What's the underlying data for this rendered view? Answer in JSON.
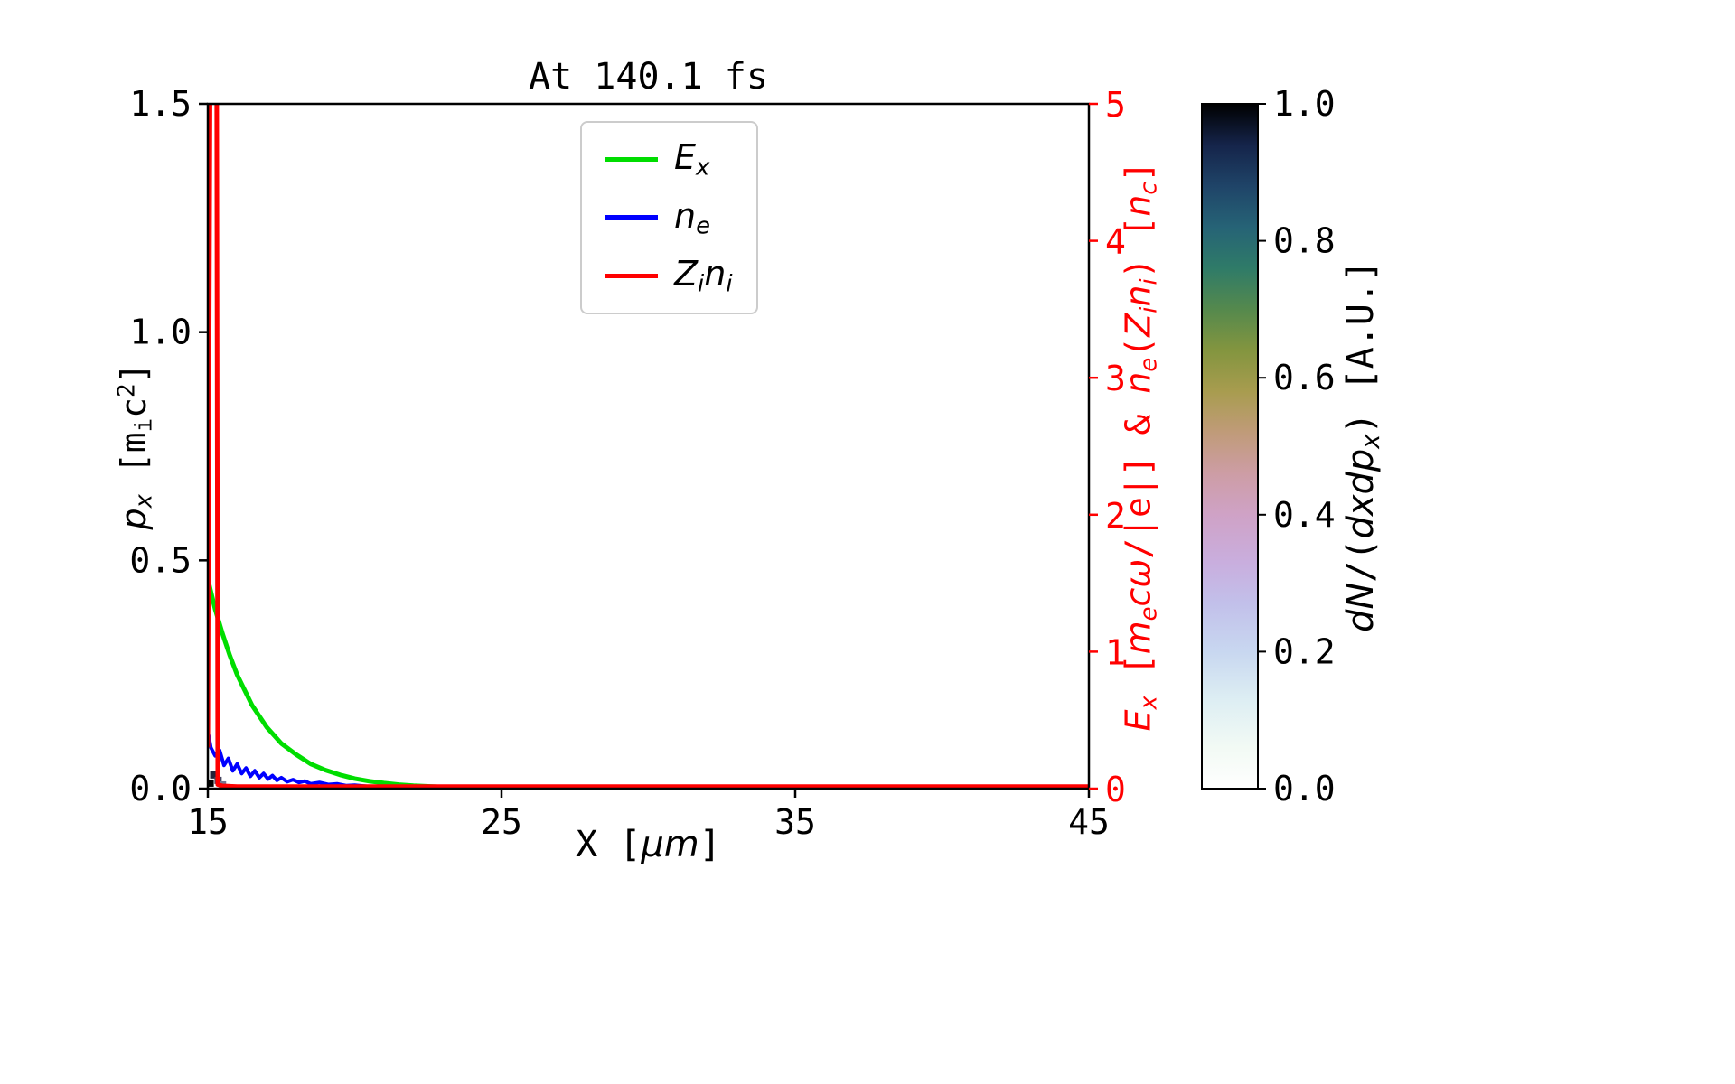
{
  "title": "At 140.1 fs",
  "labels": {
    "ylabel_left": {
      "p": "p",
      "x": "x",
      "m_open": " [m",
      "i": "i",
      "c": "c",
      "two": "2",
      "close": "]"
    },
    "xlabel": {
      "pre": "X [",
      "mu": "μm",
      "close": "]"
    },
    "ylabel_right": {
      "E": "E",
      "x": "x",
      "b1": " [",
      "m": "m",
      "e1": "e",
      "c": "c",
      "omega": "ω",
      "mid": "/|e|] & ",
      "n1": "n",
      "e2": "e",
      "p1": "(",
      "Z": "Z",
      "i1": "i",
      "n2": "n",
      "i2": "i",
      "p2": ") [",
      "n3": "n",
      "c2": "c",
      "b3": "]"
    },
    "colorbar": {
      "dN": "dN",
      "sl": "/(",
      "dxdp": "dxdp",
      "x": "x",
      "rest": ") [A.U.]"
    }
  },
  "legend": {
    "entries": [
      {
        "label_main": "E",
        "label_sub": "x"
      },
      {
        "label_main": "n",
        "label_sub": "e"
      },
      {
        "label_main": "Z",
        "label_sub": "i",
        "label_main2": "n",
        "label_sub2": "i"
      }
    ]
  },
  "chart_data": {
    "type": "line",
    "title": "At 140.1 fs",
    "xlabel": "X [μm]",
    "ylabel_left": "p_x [m_i c^2]",
    "ylabel_right": "E_x [m_e cω/|e|] & n_e(Z_i n_i) [n_c]",
    "xlim": [
      15,
      45
    ],
    "ylim_left": [
      0,
      1.5
    ],
    "ylim_right": [
      0,
      5
    ],
    "grid": false,
    "legend_position": "upper center",
    "x_ticks": [
      15,
      25,
      35,
      45
    ],
    "x_tick_labels": [
      "15",
      "25",
      "35",
      "45"
    ],
    "y_ticks_left": [
      0,
      0.5,
      1,
      1.5
    ],
    "y_tick_labels_left": [
      "0.0",
      "0.5",
      "1.0",
      "1.5"
    ],
    "y_ticks_right": [
      0,
      1,
      2,
      3,
      4,
      5
    ],
    "y_tick_labels_right": [
      "0",
      "1",
      "2",
      "3",
      "4",
      "5"
    ],
    "axis_color_left": "#000000",
    "axis_color_right": "#ff0000",
    "series": [
      {
        "name": "E_x",
        "axis": "right",
        "color": "#00dd00",
        "width": 5,
        "x": [
          15,
          15.25,
          15.5,
          15.75,
          16,
          16.5,
          17,
          17.5,
          18,
          18.5,
          19,
          19.5,
          20,
          20.5,
          21,
          21.5,
          22,
          23,
          24,
          25,
          30,
          45
        ],
        "y": [
          1.53,
          1.31,
          1.13,
          0.97,
          0.83,
          0.61,
          0.45,
          0.33,
          0.25,
          0.18,
          0.135,
          0.1,
          0.073,
          0.054,
          0.04,
          0.029,
          0.021,
          0.011,
          0.006,
          0.003,
          0,
          0
        ]
      },
      {
        "name": "n_e",
        "axis": "right",
        "color": "#0000ff",
        "width": 4,
        "x": [
          15,
          15.1,
          15.25,
          15.4,
          15.55,
          15.7,
          15.85,
          16,
          16.15,
          16.3,
          16.45,
          16.6,
          16.75,
          16.9,
          17.05,
          17.2,
          17.35,
          17.5,
          17.7,
          17.9,
          18.1,
          18.3,
          18.5,
          18.8,
          19.1,
          19.4,
          19.7,
          20,
          20.5,
          21,
          21.5,
          22,
          23,
          25,
          45
        ],
        "y": [
          0.42,
          0.3,
          0.24,
          0.28,
          0.17,
          0.22,
          0.13,
          0.18,
          0.11,
          0.15,
          0.09,
          0.13,
          0.08,
          0.11,
          0.07,
          0.095,
          0.06,
          0.08,
          0.05,
          0.065,
          0.045,
          0.055,
          0.035,
          0.045,
          0.03,
          0.035,
          0.022,
          0.025,
          0.015,
          0.012,
          0.008,
          0.006,
          0.003,
          0,
          0
        ]
      },
      {
        "name": "Z_i n_i",
        "axis": "right",
        "color": "#ff0000",
        "width": 5,
        "x": [
          15,
          15.04,
          15.08,
          15.3,
          15.34,
          15.5,
          16,
          45
        ],
        "y": [
          0.3,
          3,
          5.3,
          5.3,
          0.03,
          0.02,
          0.015,
          0.015
        ]
      }
    ],
    "colorbar": {
      "label": "dN/(dxdp_x) [A.U.]",
      "ticks": [
        0,
        0.2,
        0.4,
        0.6,
        0.8,
        1
      ],
      "tick_labels": [
        "0.0",
        "0.2",
        "0.4",
        "0.6",
        "0.8",
        "1.0"
      ],
      "colormap": "cubehelix_r-like (white bottom to black top)",
      "gradient": [
        [
          0,
          "#ffffff"
        ],
        [
          0.06,
          "#f2faf4"
        ],
        [
          0.13,
          "#ddeef3"
        ],
        [
          0.2,
          "#c8d7f0"
        ],
        [
          0.27,
          "#c2c0ea"
        ],
        [
          0.33,
          "#c9aede"
        ],
        [
          0.4,
          "#cfa2c6"
        ],
        [
          0.46,
          "#cd9da5"
        ],
        [
          0.52,
          "#c09b79"
        ],
        [
          0.58,
          "#a89c4f"
        ],
        [
          0.64,
          "#83953f"
        ],
        [
          0.7,
          "#55894d"
        ],
        [
          0.76,
          "#2f7b68"
        ],
        [
          0.82,
          "#266376"
        ],
        [
          0.88,
          "#1f4468"
        ],
        [
          0.94,
          "#15244a"
        ],
        [
          1,
          "#000000"
        ]
      ]
    },
    "phase_space": {
      "description": "2D histogram dN/(dxdp_x) nearly empty; faint dark cells at x≈15, p_x≈0",
      "cells": [
        {
          "x": 15.08,
          "px": 0.012,
          "color": "#000000"
        },
        {
          "x": 15.2,
          "px": 0.03,
          "color": "#22223a"
        },
        {
          "x": 15.35,
          "px": 0.018,
          "color": "#44445e"
        },
        {
          "x": 15.5,
          "px": 0.008,
          "color": "#777791"
        }
      ]
    }
  }
}
